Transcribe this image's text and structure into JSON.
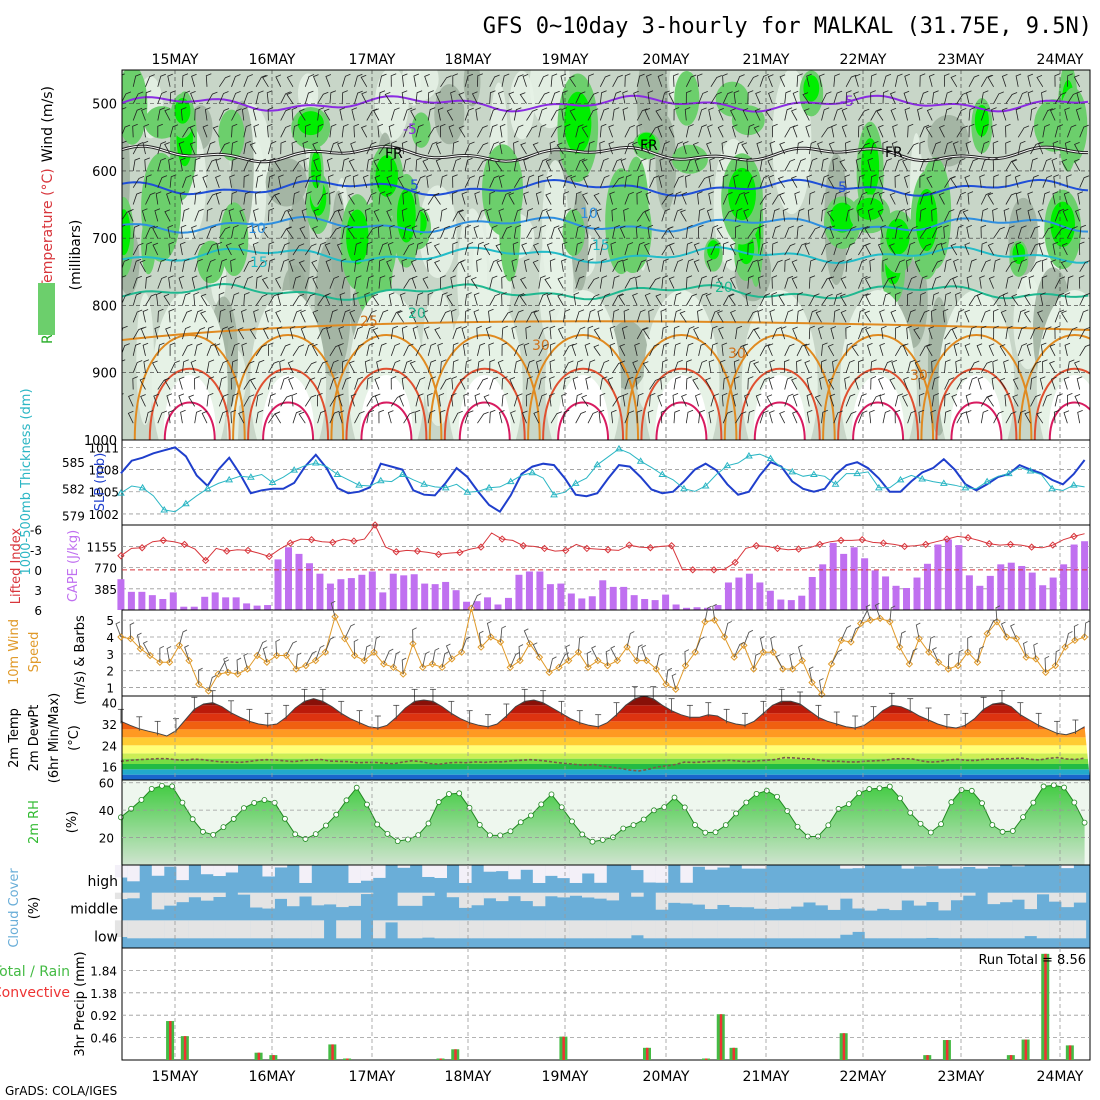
{
  "title": "GFS 0~10day 3-hourly for MALKAL (31.75E, 9.5N)",
  "credit": "GrADS: COLA/IGES",
  "dates": [
    "15MAY",
    "16MAY",
    "17MAY",
    "18MAY",
    "19MAY",
    "20MAY",
    "21MAY",
    "22MAY",
    "23MAY",
    "24MAY"
  ],
  "colors": {
    "rh_dark": "#9eaf9e",
    "rh_mid": "#c8d6c8",
    "rh_light": "#e6f2e6",
    "rh_green": "#6ccf6c",
    "rh_bright": "#00ee00",
    "slp": "#1f3fcc",
    "thickness": "#2bb6c4",
    "lifted": "#d8363c",
    "cape": "#c070f0",
    "wind10": "#e09a2a",
    "barb": "#555555",
    "rh2m": "#33bb33",
    "cloud": "#6aaed8",
    "precip_total": "#44bb44",
    "precip_conv": "#ee3333"
  },
  "chart_data": [
    {
      "type": "heatmap",
      "panel": "upper-air",
      "ylabel_parts": [
        "RH (%)",
        "Temperature (°C)",
        "Wind (m/s)"
      ],
      "yunit_label": "(millibars)",
      "yticks": [
        500,
        600,
        700,
        800,
        900,
        1000
      ],
      "ylim": [
        1000,
        450
      ],
      "isotherm_labels": [
        "-5",
        "FR",
        "5",
        "10",
        "15",
        "20",
        "25",
        "30"
      ],
      "isotherms": [
        {
          "label": "-5",
          "pressure": 500,
          "color": "#8a2be2"
        },
        {
          "label": "FR",
          "pressure": 575,
          "color": "#222222"
        },
        {
          "label": "5",
          "pressure": 625,
          "color": "#1f4fd8"
        },
        {
          "label": "10",
          "pressure": 680,
          "color": "#2e8fe0"
        },
        {
          "label": "15",
          "pressure": 725,
          "color": "#22bcc8"
        },
        {
          "label": "20",
          "pressure": 780,
          "color": "#20b890"
        }
      ]
    },
    {
      "type": "line",
      "panel": "slp-thickness",
      "ylabel_left": "1000-500mb Thickness (dm)",
      "ylabel_right": "SLP (mb)",
      "yticks_left": [
        579,
        582,
        585
      ],
      "yticks_right": [
        1002,
        1005,
        1008,
        1011
      ],
      "ylim_slp": [
        1000.5,
        1012
      ],
      "ylim_thickness": [
        577.9,
        587.5
      ],
      "series": [
        {
          "name": "SLP (mb)",
          "axis": "right",
          "values": [
            1007.5,
            1009.2,
            1009.6,
            1010.2,
            1010.6,
            1011.0,
            1009.8,
            1007.2,
            1005.8,
            1008.0,
            1009.6,
            1007.4,
            1004.8,
            1005.2,
            1005.4,
            1005.4,
            1006.2,
            1008.4,
            1010.0,
            1008.2,
            1005.5,
            1004.8,
            1005.0,
            1005.6,
            1008.8,
            1008.4,
            1008.0,
            1005.2,
            1004.6,
            1004.5,
            1006.2,
            1008.2,
            1007.0,
            1005.0,
            1003.2,
            1002.3,
            1004.5,
            1007.4,
            1008.4,
            1008.8,
            1008.6,
            1006.8,
            1004.6,
            1004.4,
            1004.8,
            1006.8,
            1008.6,
            1008.4,
            1007.0,
            1005.3,
            1004.8,
            1005.0,
            1006.4,
            1008.0,
            1008.8,
            1007.9,
            1006.0,
            1004.6,
            1005.0,
            1007.2,
            1009.0,
            1008.4,
            1006.4,
            1005.4,
            1005.0,
            1005.4,
            1007.3,
            1008.6,
            1009.0,
            1008.2,
            1006.8,
            1005.0,
            1005.0,
            1006.4,
            1007.6,
            1008.2,
            1009.4,
            1008.0,
            1006.0,
            1005.2,
            1006.0,
            1007.0,
            1007.4,
            1008.6,
            1008.0,
            1007.5,
            1006.6,
            1006.0,
            1007.4,
            1009.3
          ]
        },
        {
          "name": "1000-500mb Thickness (dm)",
          "axis": "left",
          "values": [
            581.5,
            582.3,
            582.1,
            581.2,
            579.6,
            579.4,
            580.3,
            581.2,
            582.0,
            582.6,
            583.0,
            583.4,
            583.3,
            583.6,
            582.7,
            583.3,
            584.1,
            584.6,
            584.9,
            584.5,
            583.6,
            583.0,
            582.4,
            582.3,
            582.9,
            582.8,
            583.6,
            583.0,
            582.5,
            582.2,
            582.1,
            582.5,
            581.6,
            581.7,
            582.1,
            582.2,
            582.8,
            583.5,
            583.8,
            583.2,
            581.3,
            581.6,
            582.6,
            583.2,
            584.7,
            585.6,
            586.5,
            586.0,
            585.1,
            584.4,
            583.6,
            583.0,
            582.0,
            581.7,
            582.3,
            583.6,
            584.6,
            584.9,
            585.7,
            585.9,
            585.4,
            584.4,
            583.9,
            583.4,
            583.6,
            583.4,
            582.5,
            583.7,
            583.7,
            583.9,
            582.1,
            582.1,
            583.0,
            583.5,
            583.1,
            582.8,
            582.6,
            582.4,
            582.1,
            582.0,
            582.8,
            583.4,
            583.7,
            584.4,
            584.0,
            583.6,
            582.0,
            581.8,
            582.4,
            582.2
          ]
        }
      ]
    },
    {
      "type": "bar",
      "panel": "cape-lifted-index",
      "ylabel_left": "Lifted Index",
      "ylabel_right": "CAPE (J/kg)",
      "yticks_left": [
        "-6",
        "-3",
        "0",
        "3",
        "6"
      ],
      "yticks_right": [
        385,
        770,
        1155
      ],
      "ylim_cape": [
        0,
        1545
      ],
      "ylim_li": [
        6,
        -6.7
      ],
      "series": [
        {
          "name": "CAPE (J/kg)",
          "values": [
            560,
            330,
            330,
            270,
            200,
            320,
            60,
            60,
            240,
            320,
            230,
            230,
            120,
            80,
            90,
            920,
            1140,
            1020,
            850,
            660,
            480,
            560,
            580,
            640,
            700,
            320,
            660,
            630,
            650,
            480,
            470,
            510,
            360,
            150,
            160,
            230,
            100,
            220,
            640,
            700,
            700,
            470,
            480,
            300,
            210,
            250,
            540,
            420,
            420,
            270,
            200,
            180,
            280,
            100,
            40,
            50,
            40,
            90,
            500,
            590,
            660,
            500,
            350,
            190,
            180,
            260,
            600,
            830,
            1220,
            1020,
            1140,
            940,
            720,
            610,
            440,
            400,
            590,
            840,
            1190,
            1280,
            1180,
            630,
            440,
            620,
            830,
            860,
            800,
            680,
            450,
            590,
            830,
            1190,
            1250
          ]
        },
        {
          "name": "Lifted Index",
          "values": [
            -2.1,
            -3.2,
            -3.3,
            -4.2,
            -4.4,
            -4.2,
            -3.8,
            -3.1,
            -1.4,
            -3.2,
            -2.8,
            -3.0,
            -2.9,
            -2.5,
            -2.0,
            -3.1,
            -4.0,
            -4.6,
            -4.5,
            -4.2,
            -4.1,
            -4.6,
            -4.3,
            -4.6,
            -6.7,
            -3.4,
            -2.7,
            -2.9,
            -2.8,
            -2.6,
            -2.3,
            -2.5,
            -2.6,
            -3.1,
            -3.4,
            -5.5,
            -4.6,
            -4.4,
            -3.6,
            -3.5,
            -3.2,
            -2.8,
            -2.9,
            -3.8,
            -3.2,
            -3.1,
            -3.0,
            -2.9,
            -3.7,
            -3.4,
            -3.3,
            -3.5,
            -3.6,
            -0.1,
            0.0,
            0.0,
            0.0,
            -0.1,
            -1.1,
            -3.2,
            -3.6,
            -3.5,
            -3.2,
            -3.0,
            -3.1,
            -3.3,
            -3.8,
            -4.2,
            -4.4,
            -4.4,
            -4.5,
            -4.1,
            -4.0,
            -3.8,
            -3.5,
            -3.6,
            -3.8,
            -4.2,
            -4.6,
            -5.0,
            -4.8,
            -4.4,
            -3.9,
            -3.7,
            -3.8,
            -3.7,
            -3.4,
            -3.3,
            -3.7,
            -4.5,
            -5.0,
            -5.4
          ]
        }
      ]
    },
    {
      "type": "line",
      "panel": "wind10m",
      "ylabel_parts": [
        "10m Wind",
        "Speed",
        "(m/s) & Barbs"
      ],
      "yticks": [
        1,
        2,
        3,
        4,
        5
      ],
      "ylim": [
        0.5,
        5.6
      ],
      "series": [
        {
          "name": "10m Wind Speed (m/s)",
          "values": [
            4.0,
            3.9,
            3.3,
            2.9,
            2.5,
            2.5,
            3.5,
            2.6,
            1.2,
            0.8,
            1.8,
            1.9,
            1.8,
            2.1,
            2.9,
            2.5,
            2.9,
            2.9,
            2.1,
            2.3,
            2.6,
            3.1,
            5.2,
            3.9,
            2.9,
            2.6,
            3.1,
            2.4,
            2.2,
            1.8,
            3.6,
            2.2,
            2.4,
            2.2,
            2.7,
            3.1,
            5.7,
            3.4,
            4.0,
            3.7,
            2.2,
            2.6,
            3.6,
            2.8,
            1.9,
            2.2,
            2.6,
            3.1,
            2.2,
            2.6,
            2.3,
            2.6,
            3.4,
            2.6,
            2.6,
            2.1,
            1.2,
            0.9,
            2.3,
            3.1,
            4.9,
            5.0,
            4.0,
            2.8,
            3.5,
            2.1,
            3.1,
            3.1,
            2.1,
            2.1,
            2.6,
            1.3,
            0.6,
            2.4,
            3.8,
            3.7,
            4.8,
            5.0,
            5.1,
            4.9,
            3.4,
            2.4,
            3.9,
            3.1,
            2.5,
            2.1,
            2.3,
            3.1,
            2.5,
            4.2,
            4.9,
            4.0,
            3.9,
            2.8,
            2.7,
            1.9,
            2.3,
            3.4,
            3.8,
            4.0
          ]
        }
      ]
    },
    {
      "type": "area",
      "panel": "temp2m",
      "ylabel_parts": [
        "2m Temp",
        "2m DewPt",
        "(6hr Min/Max)"
      ],
      "yunit": "(°C)",
      "yticks": [
        16,
        24,
        32,
        40
      ],
      "ylim": [
        11,
        42.5
      ],
      "series": [
        {
          "name": "2m Temp",
          "values": [
            33.0,
            31.5,
            30.2,
            29.3,
            28.5,
            27.5,
            29.5,
            33.5,
            37.5,
            39.5,
            40.0,
            38.5,
            36.2,
            34.5,
            33.0,
            32.0,
            31.5,
            32.0,
            34.5,
            38.0,
            40.5,
            41.5,
            40.5,
            38.5,
            36.0,
            34.0,
            32.5,
            31.0,
            30.5,
            31.5,
            34.5,
            38.0,
            40.5,
            41.0,
            40.5,
            38.5,
            36.0,
            34.0,
            32.5,
            31.5,
            31.0,
            32.0,
            35.0,
            38.5,
            40.5,
            41.0,
            40.0,
            38.0,
            36.0,
            34.0,
            32.5,
            31.5,
            31.0,
            32.5,
            35.5,
            39.0,
            41.5,
            42.5,
            41.5,
            39.0,
            37.0,
            35.5,
            34.5,
            34.5,
            35.5,
            35.0,
            33.0,
            32.0,
            31.5,
            33.0,
            36.0,
            39.0,
            40.5,
            40.5,
            39.5,
            37.0,
            34.5,
            33.0,
            32.0,
            31.0,
            30.5,
            31.5,
            34.0,
            37.0,
            39.0,
            38.5,
            37.0,
            35.0,
            33.5,
            32.0,
            31.0,
            30.5,
            31.5,
            34.0,
            37.5,
            39.5,
            40.0,
            38.5,
            35.5,
            33.5,
            31.5,
            30.0,
            28.5,
            28.0,
            29.0,
            31.0
          ]
        },
        {
          "name": "2m DewPt",
          "values": [
            18.0,
            18.4,
            18.6,
            18.8,
            19.0,
            19.0,
            18.6,
            18.4,
            18.8,
            18.6,
            18.2,
            17.8,
            17.8,
            17.6,
            17.9,
            18.4,
            18.6,
            18.5,
            18.2,
            17.9,
            18.3,
            18.5,
            18.7,
            18.1,
            18.0,
            17.9,
            17.5,
            17.6,
            17.6,
            17.3,
            17.1,
            17.7,
            18.2,
            17.9,
            17.2,
            16.9,
            17.4,
            17.6,
            17.5,
            17.8,
            17.6,
            17.9,
            17.8,
            18.2,
            18.4,
            18.6,
            18.4,
            18.0,
            17.5,
            17.2,
            16.8,
            16.6,
            16.8,
            16.2,
            15.8,
            15.3,
            14.7,
            14.4,
            15.0,
            15.9,
            16.3,
            16.8,
            17.7,
            17.6,
            17.8,
            18.0,
            18.2,
            18.4,
            18.1,
            17.9,
            18.2,
            18.4,
            18.7,
            19.4,
            19.3,
            19.0,
            18.9,
            18.4,
            18.0,
            18.0,
            17.8,
            17.8,
            18.1,
            18.2,
            18.4,
            18.9,
            19.0,
            18.9,
            18.2,
            17.7,
            17.9,
            18.5,
            18.8,
            18.4,
            18.3,
            18.8,
            18.8,
            19.0,
            19.0,
            19.2,
            18.8,
            18.5,
            19.1,
            19.4,
            18.9,
            18.7,
            19.2
          ]
        }
      ]
    },
    {
      "type": "area",
      "panel": "rh2m",
      "ylabel": "2m RH",
      "yunit": "(%)",
      "yticks": [
        20,
        40,
        60
      ],
      "ylim": [
        0,
        62
      ],
      "series": [
        {
          "name": "2m RH (%)",
          "values": [
            34.8,
            41.0,
            47.5,
            55.5,
            57.8,
            57.4,
            45.5,
            33.4,
            24.2,
            22.0,
            27.6,
            33.6,
            41.5,
            45.3,
            47.4,
            45.4,
            33.7,
            22.4,
            19.0,
            22.5,
            28.8,
            36.7,
            47.2,
            56.4,
            44.1,
            29.6,
            22.7,
            17.4,
            18.6,
            21.8,
            30.3,
            45.9,
            51.8,
            52.3,
            41.7,
            29.3,
            21.7,
            21.6,
            24.6,
            31.2,
            36.1,
            44.2,
            51.5,
            42.1,
            31.8,
            22.3,
            17.0,
            18.3,
            20.2,
            26.6,
            29.1,
            33.2,
            39.9,
            42.2,
            49.2,
            42.0,
            29.2,
            23.6,
            23.9,
            29.1,
            37.6,
            45.6,
            51.9,
            54.2,
            49.8,
            39.4,
            27.9,
            20.8,
            20.8,
            29.0,
            40.9,
            44.4,
            52.4,
            55.4,
            56.0,
            57.2,
            48.7,
            38.1,
            30.1,
            23.7,
            29.8,
            45.8,
            54.8,
            54.1,
            45.1,
            29.2,
            24.2,
            24.8,
            34.9,
            45.5,
            57.3,
            58.2,
            56.5,
            45.6,
            30.9
          ]
        }
      ]
    },
    {
      "type": "heatmap",
      "panel": "cloud-cover",
      "ylabel": "Cloud Cover",
      "yunit": "(%)",
      "levels": [
        "high",
        "middle",
        "low"
      ]
    },
    {
      "type": "bar",
      "panel": "precip",
      "ylabel_parts": [
        "Total / Rain",
        "Convective"
      ],
      "yunit": "3hr Precip (mm)",
      "yticks": [
        "0.46",
        "0.92",
        "1.38",
        "1.84"
      ],
      "ylim": [
        0,
        2.3
      ],
      "run_total_label": "Run Total = 8.56",
      "series": [
        {
          "name": "Total / Rain",
          "values": [
            0.8,
            0.49,
            0.15,
            0.1,
            0.32,
            0.03,
            0.03,
            0.22,
            0.48,
            0.25,
            0.03,
            0.94,
            0.25,
            0.55,
            0.1,
            0.41,
            0.1,
            0.42,
            2.18,
            0.3
          ]
        },
        {
          "name": "Convective",
          "values": [
            0.8,
            0.49,
            0.15,
            0.1,
            0.32,
            0.03,
            0.03,
            0.22,
            0.48,
            0.25,
            0.03,
            0.94,
            0.25,
            0.55,
            0.1,
            0.41,
            0.1,
            0.42,
            2.18,
            0.3
          ]
        }
      ]
    }
  ]
}
